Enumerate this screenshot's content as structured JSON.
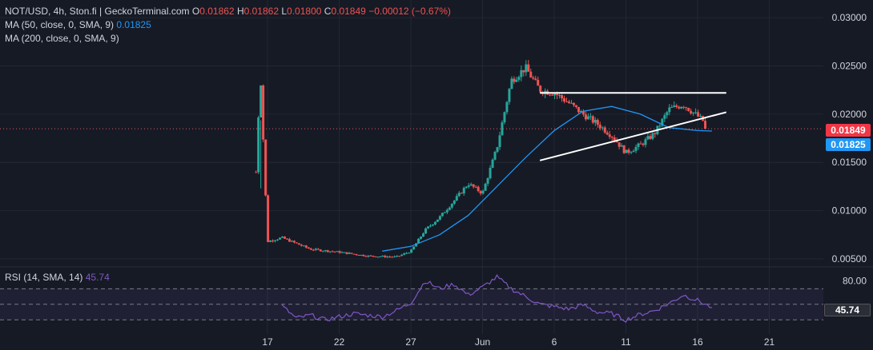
{
  "legend": {
    "symbol": "NOT/USD, 4h, Ston.fi | GeckoTerminal.com",
    "open_label": "O",
    "open": "0.01862",
    "high_label": "H",
    "high": "0.01862",
    "low_label": "L",
    "low": "0.01800",
    "close_label": "C",
    "close": "0.01849",
    "change": "−0.00012 (−0.67%)",
    "ma50_label": "MA (50, close, 0, SMA, 9)",
    "ma50_value": "0.01825",
    "ma200_label": "MA (200, close, 0, SMA, 9)",
    "rsi_label": "RSI (14, SMA, 14)",
    "rsi_value": "45.74"
  },
  "price_tags": {
    "last": "0.01849",
    "ma50": "0.01825",
    "rsi": "45.74"
  },
  "colors": {
    "background": "#161a25",
    "up": "#26a69a",
    "down": "#ef5350",
    "ma50": "#2196f3",
    "rsi": "#7e57c2",
    "trendline": "#ffffff",
    "grid": "#232733"
  },
  "chart_data": [
    {
      "type": "candlestick",
      "title": "NOT/USD, 4h, Ston.fi | GeckoTerminal.com",
      "x_ticks": [
        "17",
        "22",
        "27",
        "Jun",
        "6",
        "11",
        "16",
        "21"
      ],
      "y_ticks": [
        "0.03000",
        "0.02500",
        "0.02000",
        "0.01500",
        "0.01000",
        "0.00500"
      ],
      "ylim": [
        0.0045,
        0.031
      ],
      "series": [
        {
          "name": "MA (50, close, 0, SMA, 9)",
          "points": [
            [
              "May 25",
              0.0058
            ],
            [
              "May 27",
              0.0063
            ],
            [
              "May 29",
              0.0075
            ],
            [
              "May 31",
              0.0095
            ],
            [
              "Jun 2",
              0.0125
            ],
            [
              "Jun 4",
              0.0155
            ],
            [
              "Jun 6",
              0.0183
            ],
            [
              "Jun 8",
              0.0203
            ],
            [
              "Jun 10",
              0.0208
            ],
            [
              "Jun 12",
              0.02
            ],
            [
              "Jun 14",
              0.0186
            ],
            [
              "Jun 16",
              0.0183
            ],
            [
              "Jun 17",
              0.01825
            ]
          ]
        },
        {
          "name": "price",
          "points": [
            [
              "May 16",
              0.007
            ],
            [
              "May 16 12h",
              0.0245
            ],
            [
              "May 17",
              0.0068
            ],
            [
              "May 18",
              0.0072
            ],
            [
              "May 20",
              0.006
            ],
            [
              "May 22",
              0.0057
            ],
            [
              "May 24",
              0.0053
            ],
            [
              "May 26",
              0.0052
            ],
            [
              "May 27",
              0.0058
            ],
            [
              "May 28",
              0.008
            ],
            [
              "May 29",
              0.0093
            ],
            [
              "May 30",
              0.011
            ],
            [
              "May 31",
              0.0128
            ],
            [
              "Jun 1",
              0.0118
            ],
            [
              "Jun 2",
              0.0165
            ],
            [
              "Jun 3",
              0.0235
            ],
            [
              "Jun 4",
              0.0248
            ],
            [
              "Jun 5",
              0.0225
            ],
            [
              "Jun 6",
              0.0222
            ],
            [
              "Jun 7",
              0.0212
            ],
            [
              "Jun 8",
              0.02
            ],
            [
              "Jun 9",
              0.019
            ],
            [
              "Jun 10",
              0.0178
            ],
            [
              "Jun 11",
              0.016
            ],
            [
              "Jun 12",
              0.0168
            ],
            [
              "Jun 13",
              0.018
            ],
            [
              "Jun 14",
              0.0205
            ],
            [
              "Jun 15",
              0.021
            ],
            [
              "Jun 16",
              0.0198
            ],
            [
              "Jun 17",
              0.01849
            ]
          ]
        }
      ],
      "annotations": [
        {
          "type": "horizontal-resistance",
          "from": "Jun 5",
          "to": "Jun 18",
          "value": 0.0222
        },
        {
          "type": "ascending-support",
          "from": [
            "Jun 5",
            0.0152
          ],
          "to": [
            "Jun 18",
            0.0202
          ]
        }
      ],
      "last_price": 0.01849
    },
    {
      "type": "line",
      "title": "RSI (14, SMA, 14)",
      "y_ticks": [
        "80.00"
      ],
      "band": [
        30,
        70
      ],
      "series": [
        {
          "name": "RSI",
          "points": [
            [
              "May 18",
              48
            ],
            [
              "May 19",
              32
            ],
            [
              "May 20",
              36
            ],
            [
              "May 21",
              30
            ],
            [
              "May 23",
              38
            ],
            [
              "May 25",
              34
            ],
            [
              "May 26",
              42
            ],
            [
              "May 27",
              52
            ],
            [
              "May 28",
              80
            ],
            [
              "May 29",
              70
            ],
            [
              "May 30",
              76
            ],
            [
              "May 31",
              62
            ],
            [
              "Jun 1",
              72
            ],
            [
              "Jun 2",
              85
            ],
            [
              "Jun 3",
              70
            ],
            [
              "Jun 4",
              60
            ],
            [
              "Jun 5",
              50
            ],
            [
              "Jun 6",
              47
            ],
            [
              "Jun 7",
              44
            ],
            [
              "Jun 8",
              49
            ],
            [
              "Jun 9",
              40
            ],
            [
              "Jun 10",
              38
            ],
            [
              "Jun 11",
              30
            ],
            [
              "Jun 12",
              37
            ],
            [
              "Jun 13",
              42
            ],
            [
              "Jun 14",
              51
            ],
            [
              "Jun 15",
              62
            ],
            [
              "Jun 16",
              55
            ],
            [
              "Jun 17",
              45.74
            ]
          ]
        }
      ]
    }
  ]
}
